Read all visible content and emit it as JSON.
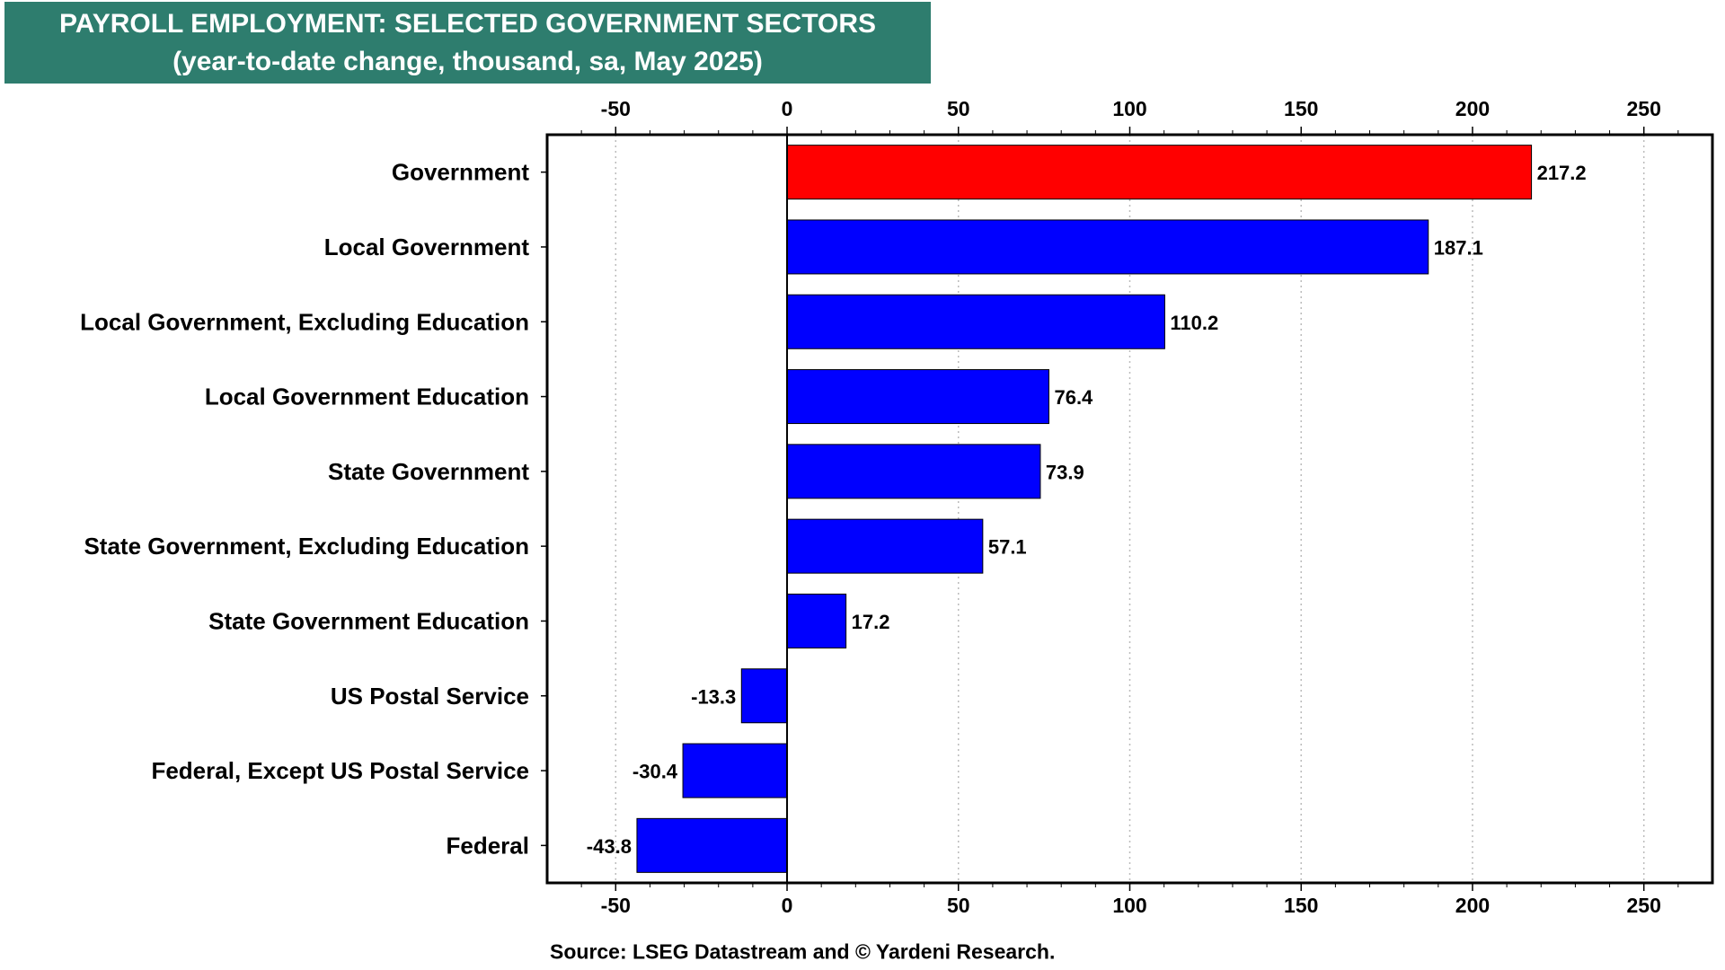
{
  "title": {
    "line1": "PAYROLL EMPLOYMENT: SELECTED GOVERNMENT SECTORS",
    "line2": "(year-to-date change, thousand, sa, May 2025)"
  },
  "source": "Source: LSEG Datastream and © Yardeni Research.",
  "colors": {
    "title_bg": "#2e7d6e",
    "highlight_bar": "#ff0000",
    "bar": "#0000ff"
  },
  "chart_data": {
    "type": "bar",
    "orientation": "horizontal",
    "categories": [
      "Government",
      "Local Government",
      "Local Government, Excluding Education",
      "Local Government Education",
      "State Government",
      "State Government, Excluding Education",
      "State Government Education",
      "US Postal Service",
      "Federal, Except US Postal Service",
      "Federal"
    ],
    "values": [
      217.2,
      187.1,
      110.2,
      76.4,
      73.9,
      57.1,
      17.2,
      -13.3,
      -30.4,
      -43.8
    ],
    "labels": [
      "217.2",
      "187.1",
      "110.2",
      "76.4",
      "73.9",
      "57.1",
      "17.2",
      "-13.3",
      "-30.4",
      "-43.8"
    ],
    "highlight_index": 0,
    "xlim": [
      -70,
      270
    ],
    "xticks": [
      -50,
      0,
      50,
      100,
      150,
      200,
      250
    ],
    "xtick_labels": [
      "-50",
      "0",
      "50",
      "100",
      "150",
      "200",
      "250"
    ],
    "axis_position": "top and bottom",
    "grid": "vertical dotted"
  }
}
